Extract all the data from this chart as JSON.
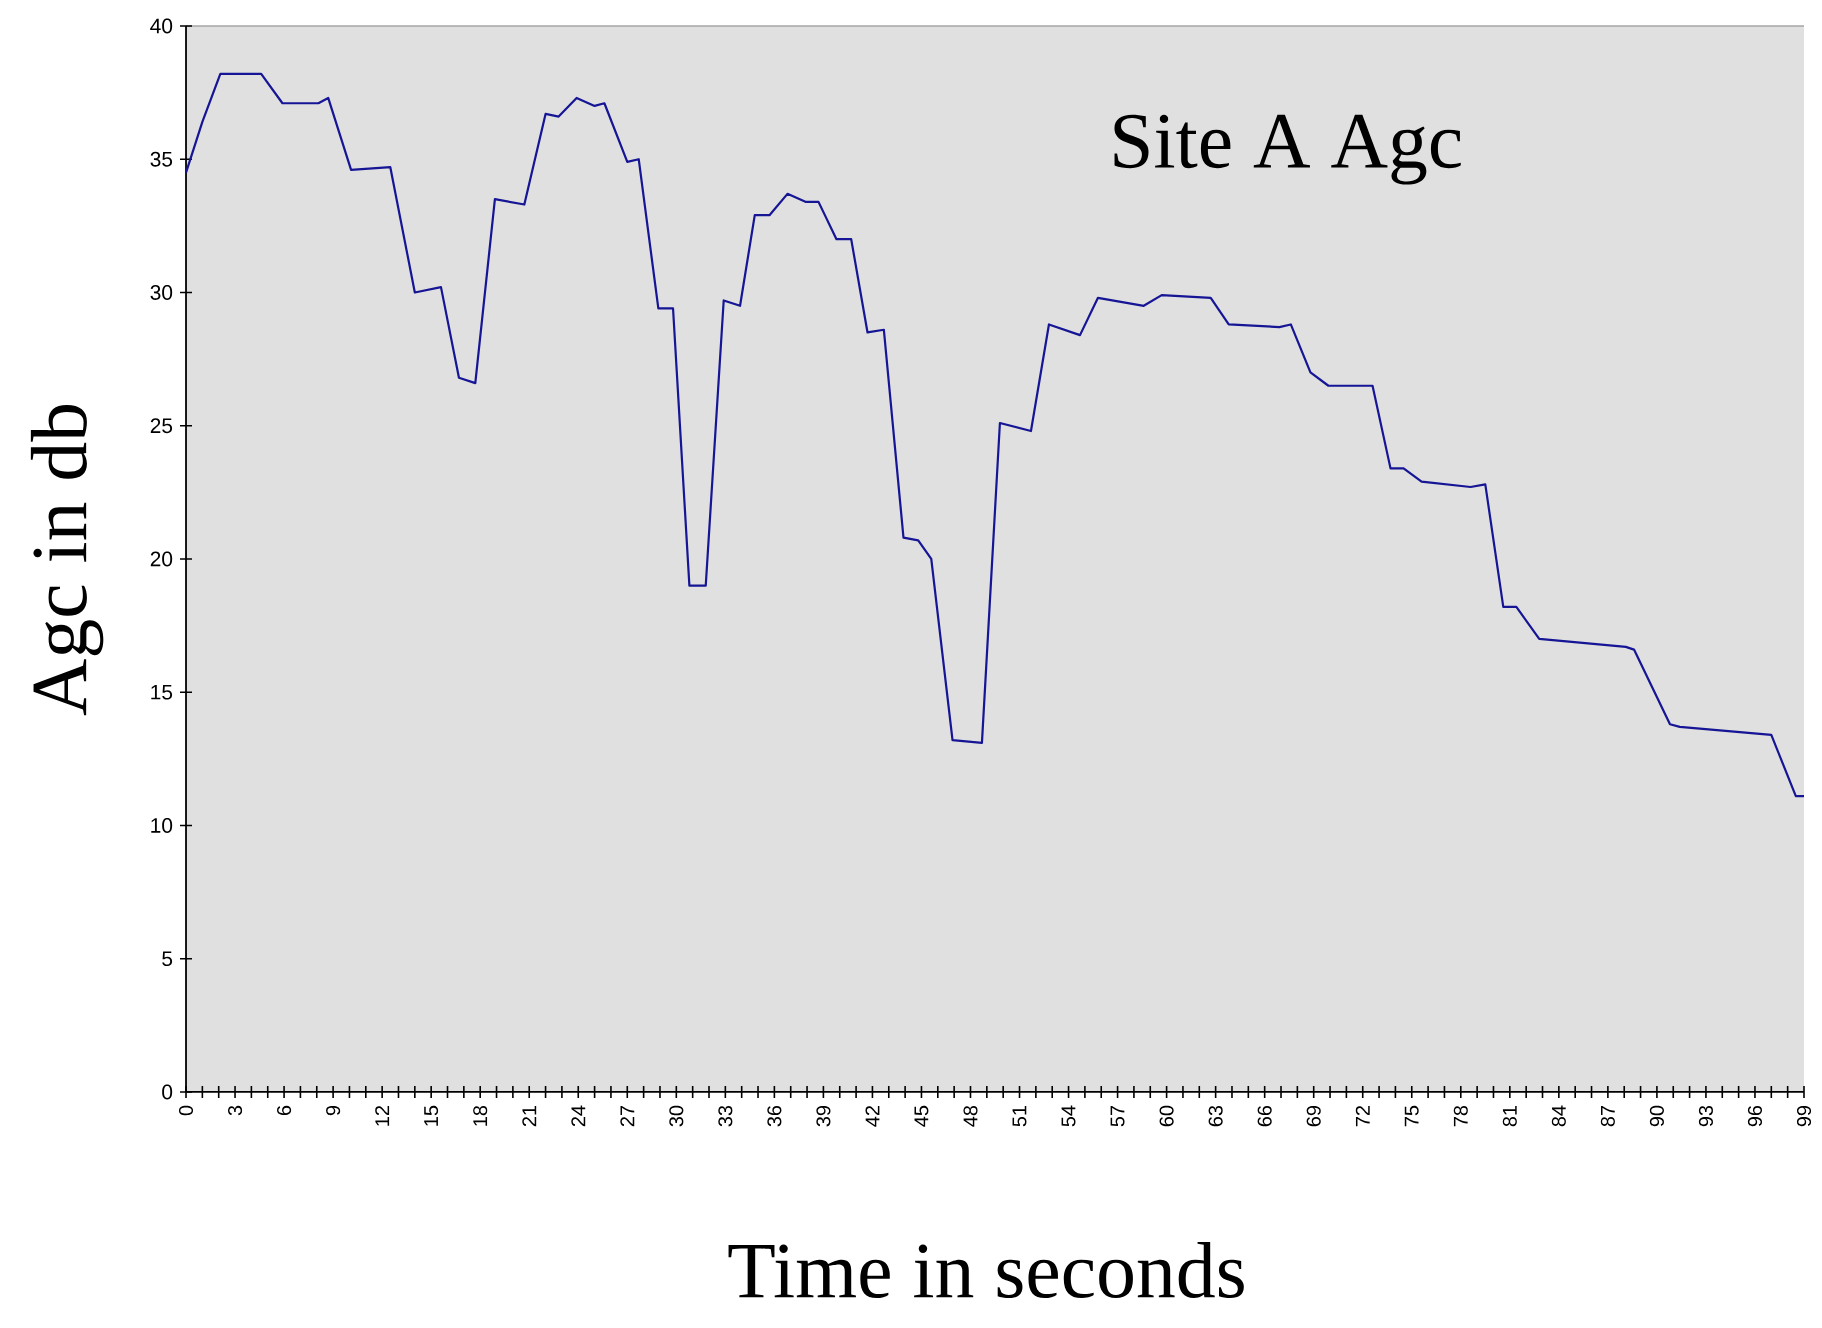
{
  "chart_data": {
    "type": "line",
    "title": "Site A Agc",
    "xlabel": "Time in seconds",
    "ylabel": "Agc in db",
    "xlim": [
      0,
      99
    ],
    "ylim": [
      0,
      40
    ],
    "yticks": [
      0,
      5,
      10,
      15,
      20,
      25,
      30,
      35,
      40
    ],
    "xticks": [
      0,
      {
        "value": 1,
        "label": null
      },
      {
        "value": 2,
        "label": null
      },
      3,
      {
        "value": 4,
        "label": null
      },
      {
        "value": 5,
        "label": null
      },
      6,
      {
        "value": 7,
        "label": null
      },
      {
        "value": 8,
        "label": null
      },
      9,
      {
        "value": 10,
        "label": null
      },
      {
        "value": 11,
        "label": null
      },
      12,
      {
        "value": 13,
        "label": null
      },
      {
        "value": 14,
        "label": null
      },
      15,
      {
        "value": 16,
        "label": null
      },
      {
        "value": 17,
        "label": null
      },
      18,
      {
        "value": 19,
        "label": null
      },
      {
        "value": 20,
        "label": null
      },
      21,
      {
        "value": 22,
        "label": null
      },
      {
        "value": 23,
        "label": null
      },
      24,
      {
        "value": 25,
        "label": null
      },
      {
        "value": 26,
        "label": null
      },
      27,
      {
        "value": 28,
        "label": null
      },
      {
        "value": 29,
        "label": null
      },
      30,
      {
        "value": 31,
        "label": null
      },
      {
        "value": 32,
        "label": null
      },
      33,
      {
        "value": 34,
        "label": null
      },
      {
        "value": 35,
        "label": null
      },
      36,
      {
        "value": 37,
        "label": null
      },
      {
        "value": 38,
        "label": null
      },
      39,
      {
        "value": 40,
        "label": null
      },
      {
        "value": 41,
        "label": null
      },
      42,
      {
        "value": 43,
        "label": null
      },
      {
        "value": 44,
        "label": null
      },
      45,
      {
        "value": 46,
        "label": null
      },
      {
        "value": 47,
        "label": null
      },
      48,
      {
        "value": 49,
        "label": null
      },
      {
        "value": 50,
        "label": null
      },
      51,
      {
        "value": 52,
        "label": null
      },
      {
        "value": 53,
        "label": null
      },
      54,
      {
        "value": 55,
        "label": null
      },
      {
        "value": 56,
        "label": null
      },
      57,
      {
        "value": 58,
        "label": null
      },
      {
        "value": 59,
        "label": null
      },
      60,
      {
        "value": 61,
        "label": null
      },
      {
        "value": 62,
        "label": null
      },
      63,
      {
        "value": 64,
        "label": null
      },
      {
        "value": 65,
        "label": null
      },
      66,
      {
        "value": 67,
        "label": null
      },
      {
        "value": 68,
        "label": null
      },
      69,
      {
        "value": 70,
        "label": null
      },
      {
        "value": 71,
        "label": null
      },
      72,
      {
        "value": 73,
        "label": null
      },
      {
        "value": 74,
        "label": null
      },
      75,
      {
        "value": 76,
        "label": null
      },
      {
        "value": 77,
        "label": null
      },
      78,
      {
        "value": 79,
        "label": null
      },
      {
        "value": 80,
        "label": null
      },
      81,
      {
        "value": 82,
        "label": null
      },
      {
        "value": 83,
        "label": null
      },
      84,
      {
        "value": 85,
        "label": null
      },
      {
        "value": 86,
        "label": null
      },
      87,
      {
        "value": 88,
        "label": null
      },
      {
        "value": 89,
        "label": null
      },
      90,
      {
        "value": 91,
        "label": null
      },
      {
        "value": 92,
        "label": null
      },
      93,
      {
        "value": 94,
        "label": null
      },
      {
        "value": 95,
        "label": null
      },
      96,
      {
        "value": 97,
        "label": null
      },
      {
        "value": 98,
        "label": null
      },
      99
    ],
    "series": [
      {
        "color": "#151595",
        "x": [
          0,
          1,
          2.1,
          3,
          4.6,
          5.9,
          8.1,
          8.7,
          10.1,
          12.5,
          14,
          15.6,
          16.7,
          17.7,
          18.9,
          20.7,
          22,
          22.8,
          23.9,
          25,
          25.6,
          27,
          27.7,
          28.9,
          29.8,
          30.8,
          31.8,
          32.9,
          33.9,
          34.8,
          35.7,
          36.8,
          37.9,
          38.7,
          39.8,
          40.7,
          41.7,
          42.7,
          43.9,
          44.8,
          45.6,
          46.9,
          48.7,
          49.8,
          51.7,
          52.8,
          54.7,
          55.8,
          58.6,
          59.7,
          62.7,
          63.8,
          66.9,
          67.6,
          68.8,
          69.9,
          72.6,
          73.7,
          74.5,
          75.6,
          78.6,
          79.5,
          80.6,
          81.4,
          82.8,
          88.1,
          88.6,
          90.8,
          91.4,
          97,
          98.5,
          99
        ],
        "values": [
          34.5,
          36.4,
          38.2,
          38.2,
          38.2,
          37.1,
          37.1,
          37.3,
          34.6,
          34.7,
          30,
          30.2,
          26.8,
          26.6,
          33.5,
          33.3,
          36.7,
          36.6,
          37.3,
          37,
          37.1,
          34.9,
          35,
          29.4,
          29.4,
          19,
          19,
          29.7,
          29.5,
          32.9,
          32.9,
          33.7,
          33.4,
          33.4,
          32,
          32,
          28.5,
          28.6,
          20.8,
          20.7,
          20,
          13.2,
          13.1,
          25.1,
          24.8,
          28.8,
          28.4,
          29.8,
          29.5,
          29.9,
          29.8,
          28.8,
          28.7,
          28.8,
          27,
          26.5,
          26.5,
          23.4,
          23.4,
          22.9,
          22.7,
          22.8,
          18.2,
          18.2,
          17,
          16.7,
          16.6,
          13.8,
          13.7,
          13.4,
          11.1,
          11.1
        ]
      }
    ]
  }
}
